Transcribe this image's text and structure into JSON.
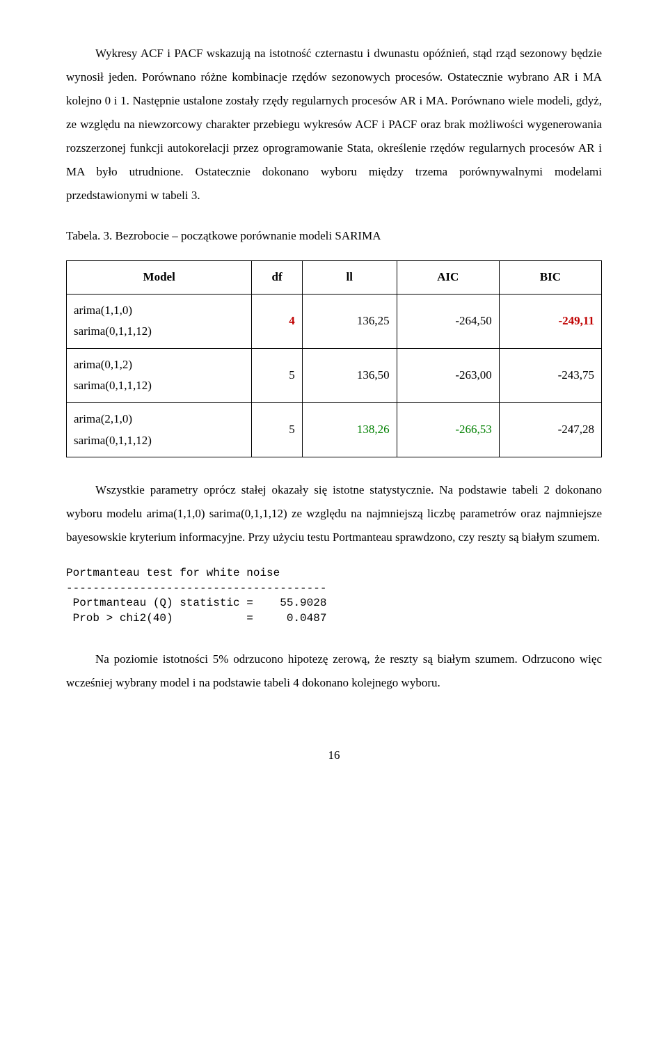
{
  "paragraphs": {
    "p1": "Wykresy ACF i PACF wskazują na istotność czternastu i dwunastu opóźnień, stąd rząd sezonowy będzie wynosił jeden. Porównano różne kombinacje rzędów sezonowych procesów. Ostatecznie wybrano AR i MA kolejno 0 i 1. Następnie ustalone zostały rzędy regularnych procesów AR i MA. Porównano wiele modeli, gdyż, ze względu na niewzorcowy charakter przebiegu wykresów ACF i PACF oraz brak możliwości wygenerowania rozszerzonej funkcji autokorelacji przez oprogramowanie Stata, określenie rzędów regularnych procesów AR i MA było utrudnione. Ostatecznie dokonano wyboru między trzema porównywalnymi modelami przedstawionymi w tabeli 3.",
    "p2": "Wszystkie parametry oprócz stałej okazały się istotne statystycznie. Na podstawie tabeli 2 dokonano wyboru modelu arima(1,1,0) sarima(0,1,1,12) ze względu na najmniejszą liczbę parametrów oraz najmniejsze bayesowskie kryterium informacyjne. Przy użyciu testu Portmanteau sprawdzono, czy reszty są białym szumem.",
    "p3": "Na poziomie istotności 5% odrzucono hipotezę zerową, że reszty są białym szumem. Odrzucono więc wcześniej wybrany model i na podstawie tabeli 4 dokonano kolejnego wyboru."
  },
  "table": {
    "caption": "Tabela. 3. Bezrobocie – początkowe porównanie modeli SARIMA",
    "columns": [
      "Model",
      "df",
      "ll",
      "AIC",
      "BIC"
    ],
    "rows": [
      {
        "model_line1": "arima(1,1,0)",
        "model_line2": "sarima(0,1,1,12)",
        "df": "4",
        "ll": "136,25",
        "aic": "-264,50",
        "bic": "-249,11",
        "df_color": "#c00000",
        "bic_color": "#c00000",
        "df_bold": true,
        "bic_bold": true
      },
      {
        "model_line1": "arima(0,1,2)",
        "model_line2": "sarima(0,1,1,12)",
        "df": "5",
        "ll": "136,50",
        "aic": "-263,00",
        "bic": "-243,75",
        "df_color": "#000000",
        "bic_color": "#000000",
        "df_bold": false,
        "bic_bold": false
      },
      {
        "model_line1": "arima(2,1,0)",
        "model_line2": "sarima(0,1,1,12)",
        "df": "5",
        "ll": "138,26",
        "aic": "-266,53",
        "bic": "-247,28",
        "ll_color": "#008000",
        "aic_color": "#008000",
        "df_color": "#000000",
        "bic_color": "#000000",
        "df_bold": false,
        "bic_bold": false
      }
    ]
  },
  "mono_block": {
    "line1": "Portmanteau test for white noise",
    "line2": "---------------------------------------",
    "line3": " Portmanteau (Q) statistic =    55.9028",
    "line4": " Prob > chi2(40)           =     0.0487"
  },
  "page_number": "16"
}
